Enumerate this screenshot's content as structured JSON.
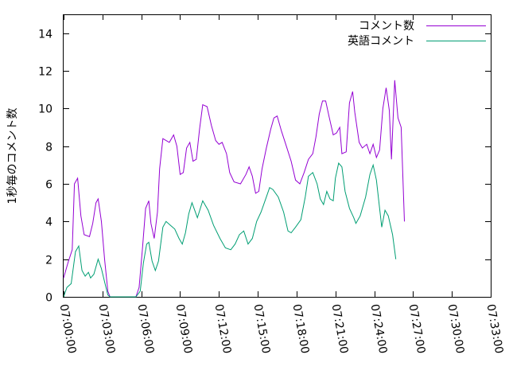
{
  "chart_data": {
    "type": "line",
    "ylabel": "1秒毎のコメント数",
    "xlabel": "",
    "ylim": [
      0,
      15
    ],
    "xlim": [
      "07:00:00",
      "07:33:00"
    ],
    "yticks": [
      0,
      2,
      4,
      6,
      8,
      10,
      12,
      14
    ],
    "xticks": [
      "07:00:00",
      "07:03:00",
      "07:06:00",
      "07:09:00",
      "07:12:00",
      "07:15:00",
      "07:18:00",
      "07:21:00",
      "07:24:00",
      "07:27:00",
      "07:30:00",
      "07:33:00"
    ],
    "legend_position": "top-right",
    "grid": false,
    "series": [
      {
        "name": "コメント数",
        "color": "#9400d3",
        "points": [
          [
            "07:00:00",
            1.0
          ],
          [
            "07:00:20",
            1.8
          ],
          [
            "07:00:40",
            2.5
          ],
          [
            "07:00:50",
            6.0
          ],
          [
            "07:01:05",
            6.3
          ],
          [
            "07:01:20",
            4.3
          ],
          [
            "07:01:35",
            3.3
          ],
          [
            "07:02:00",
            3.2
          ],
          [
            "07:02:15",
            3.9
          ],
          [
            "07:02:30",
            5.0
          ],
          [
            "07:02:40",
            5.2
          ],
          [
            "07:02:55",
            4.0
          ],
          [
            "07:03:10",
            2.0
          ],
          [
            "07:03:25",
            0.3
          ],
          [
            "07:03:35",
            0.0
          ],
          [
            "07:05:35",
            0.0
          ],
          [
            "07:05:50",
            0.5
          ],
          [
            "07:06:05",
            2.5
          ],
          [
            "07:06:20",
            4.7
          ],
          [
            "07:06:35",
            5.1
          ],
          [
            "07:06:45",
            3.9
          ],
          [
            "07:07:00",
            3.1
          ],
          [
            "07:07:15",
            4.5
          ],
          [
            "07:07:25",
            6.8
          ],
          [
            "07:07:40",
            8.4
          ],
          [
            "07:08:10",
            8.2
          ],
          [
            "07:08:30",
            8.6
          ],
          [
            "07:08:45",
            8.0
          ],
          [
            "07:09:00",
            6.5
          ],
          [
            "07:09:15",
            6.6
          ],
          [
            "07:09:30",
            7.9
          ],
          [
            "07:09:45",
            8.2
          ],
          [
            "07:10:00",
            7.2
          ],
          [
            "07:10:15",
            7.3
          ],
          [
            "07:10:30",
            8.9
          ],
          [
            "07:10:45",
            10.2
          ],
          [
            "07:11:05",
            10.1
          ],
          [
            "07:11:25",
            9.1
          ],
          [
            "07:11:45",
            8.3
          ],
          [
            "07:12:00",
            8.1
          ],
          [
            "07:12:15",
            8.2
          ],
          [
            "07:12:35",
            7.6
          ],
          [
            "07:12:50",
            6.6
          ],
          [
            "07:13:10",
            6.1
          ],
          [
            "07:13:40",
            6.0
          ],
          [
            "07:14:05",
            6.5
          ],
          [
            "07:14:20",
            6.9
          ],
          [
            "07:14:35",
            6.4
          ],
          [
            "07:14:50",
            5.5
          ],
          [
            "07:15:05",
            5.6
          ],
          [
            "07:15:20",
            6.8
          ],
          [
            "07:15:40",
            7.9
          ],
          [
            "07:16:00",
            8.9
          ],
          [
            "07:16:15",
            9.5
          ],
          [
            "07:16:30",
            9.6
          ],
          [
            "07:16:50",
            8.8
          ],
          [
            "07:17:10",
            8.1
          ],
          [
            "07:17:35",
            7.2
          ],
          [
            "07:17:55",
            6.2
          ],
          [
            "07:18:15",
            6.0
          ],
          [
            "07:18:35",
            6.6
          ],
          [
            "07:18:55",
            7.3
          ],
          [
            "07:19:15",
            7.6
          ],
          [
            "07:19:30",
            8.5
          ],
          [
            "07:19:45",
            9.7
          ],
          [
            "07:20:00",
            10.4
          ],
          [
            "07:20:15",
            10.4
          ],
          [
            "07:20:30",
            9.6
          ],
          [
            "07:20:50",
            8.6
          ],
          [
            "07:21:05",
            8.7
          ],
          [
            "07:21:20",
            9.0
          ],
          [
            "07:21:30",
            7.6
          ],
          [
            "07:21:50",
            7.7
          ],
          [
            "07:22:05",
            10.3
          ],
          [
            "07:22:20",
            10.9
          ],
          [
            "07:22:30",
            9.8
          ],
          [
            "07:22:50",
            8.2
          ],
          [
            "07:23:05",
            7.9
          ],
          [
            "07:23:25",
            8.1
          ],
          [
            "07:23:40",
            7.6
          ],
          [
            "07:23:55",
            8.1
          ],
          [
            "07:24:10",
            7.4
          ],
          [
            "07:24:25",
            7.8
          ],
          [
            "07:24:40",
            10.0
          ],
          [
            "07:24:55",
            11.1
          ],
          [
            "07:25:10",
            9.9
          ],
          [
            "07:25:20",
            7.3
          ],
          [
            "07:25:35",
            11.5
          ],
          [
            "07:25:50",
            9.5
          ],
          [
            "07:26:05",
            9.0
          ],
          [
            "07:26:20",
            4.0
          ]
        ]
      },
      {
        "name": "英語コメント",
        "color": "#009e73",
        "points": [
          [
            "07:00:00",
            0.0
          ],
          [
            "07:00:15",
            0.5
          ],
          [
            "07:00:35",
            0.7
          ],
          [
            "07:00:55",
            2.4
          ],
          [
            "07:01:10",
            2.7
          ],
          [
            "07:01:25",
            1.4
          ],
          [
            "07:01:40",
            1.1
          ],
          [
            "07:01:55",
            1.3
          ],
          [
            "07:02:05",
            1.0
          ],
          [
            "07:02:20",
            1.2
          ],
          [
            "07:02:40",
            2.0
          ],
          [
            "07:02:55",
            1.5
          ],
          [
            "07:03:10",
            0.8
          ],
          [
            "07:03:25",
            0.1
          ],
          [
            "07:03:35",
            0.0
          ],
          [
            "07:05:35",
            0.0
          ],
          [
            "07:05:55",
            0.3
          ],
          [
            "07:06:10",
            1.8
          ],
          [
            "07:06:25",
            2.8
          ],
          [
            "07:06:35",
            2.9
          ],
          [
            "07:06:50",
            1.9
          ],
          [
            "07:07:05",
            1.4
          ],
          [
            "07:07:20",
            1.9
          ],
          [
            "07:07:40",
            3.7
          ],
          [
            "07:07:55",
            4.0
          ],
          [
            "07:08:15",
            3.8
          ],
          [
            "07:08:35",
            3.6
          ],
          [
            "07:08:55",
            3.1
          ],
          [
            "07:09:10",
            2.8
          ],
          [
            "07:09:25",
            3.4
          ],
          [
            "07:09:40",
            4.4
          ],
          [
            "07:09:55",
            5.0
          ],
          [
            "07:10:20",
            4.2
          ],
          [
            "07:10:45",
            5.1
          ],
          [
            "07:11:10",
            4.6
          ],
          [
            "07:11:35",
            3.8
          ],
          [
            "07:12:05",
            3.1
          ],
          [
            "07:12:30",
            2.6
          ],
          [
            "07:12:55",
            2.5
          ],
          [
            "07:13:15",
            2.8
          ],
          [
            "07:13:35",
            3.3
          ],
          [
            "07:13:55",
            3.5
          ],
          [
            "07:14:15",
            2.8
          ],
          [
            "07:14:35",
            3.1
          ],
          [
            "07:14:55",
            4.0
          ],
          [
            "07:15:15",
            4.5
          ],
          [
            "07:15:40",
            5.3
          ],
          [
            "07:15:55",
            5.8
          ],
          [
            "07:16:10",
            5.7
          ],
          [
            "07:16:35",
            5.3
          ],
          [
            "07:17:00",
            4.5
          ],
          [
            "07:17:20",
            3.5
          ],
          [
            "07:17:35",
            3.4
          ],
          [
            "07:17:55",
            3.7
          ],
          [
            "07:18:20",
            4.1
          ],
          [
            "07:18:40",
            5.3
          ],
          [
            "07:18:55",
            6.4
          ],
          [
            "07:19:15",
            6.6
          ],
          [
            "07:19:35",
            6.0
          ],
          [
            "07:19:50",
            5.2
          ],
          [
            "07:20:05",
            4.9
          ],
          [
            "07:20:20",
            5.6
          ],
          [
            "07:20:35",
            5.2
          ],
          [
            "07:20:50",
            5.1
          ],
          [
            "07:21:00",
            6.3
          ],
          [
            "07:21:15",
            7.1
          ],
          [
            "07:21:30",
            6.9
          ],
          [
            "07:21:45",
            5.6
          ],
          [
            "07:22:05",
            4.7
          ],
          [
            "07:22:25",
            4.2
          ],
          [
            "07:22:35",
            3.9
          ],
          [
            "07:22:55",
            4.3
          ],
          [
            "07:23:20",
            5.3
          ],
          [
            "07:23:40",
            6.5
          ],
          [
            "07:23:55",
            7.0
          ],
          [
            "07:24:10",
            6.2
          ],
          [
            "07:24:25",
            4.7
          ],
          [
            "07:24:35",
            3.7
          ],
          [
            "07:24:50",
            4.6
          ],
          [
            "07:25:05",
            4.3
          ],
          [
            "07:25:25",
            3.3
          ],
          [
            "07:25:40",
            2.0
          ]
        ]
      }
    ]
  }
}
